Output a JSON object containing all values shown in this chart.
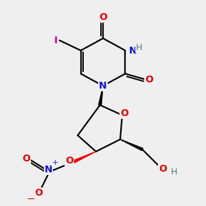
{
  "background_color": "#efefef",
  "fig_size": [
    3.0,
    3.0
  ],
  "dpi": 100,
  "atom_colors": {
    "C": "#000000",
    "N": "#1010dd",
    "O": "#ee0000",
    "I": "#cc00cc",
    "H": "#4a8080",
    "plus": "#1010dd",
    "minus": "#ee0000"
  }
}
